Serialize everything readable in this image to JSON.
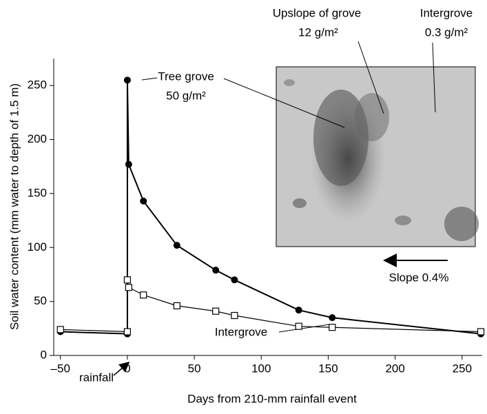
{
  "chart_data": {
    "type": "line",
    "x_label": "Days from 210-mm rainfall event",
    "y_label": "Soil water content (mm water to depth of 1.5 m)",
    "x": [
      -50,
      0,
      0,
      1,
      12,
      37,
      66,
      80,
      128,
      153,
      264
    ],
    "series": [
      {
        "name": "Tree grove",
        "color": "#000000",
        "marker": "filled-circle",
        "values": [
          22,
          20,
          255,
          177,
          143,
          102,
          79,
          70,
          42,
          35,
          20
        ]
      },
      {
        "name": "Intergrove",
        "color": "#000000",
        "marker": "open-square",
        "values": [
          24,
          22,
          70,
          63,
          56,
          46,
          41,
          37,
          27,
          26,
          22
        ]
      }
    ],
    "xlim": [
      -55,
      265
    ],
    "ylim": [
      0,
      275
    ],
    "xticks": [
      {
        "value": -50,
        "label": "–50"
      },
      0,
      50,
      100,
      150,
      200,
      250
    ],
    "yticks": [
      0,
      50,
      100,
      150,
      200,
      250
    ],
    "annotations": {
      "tree_grove_density": "50 g/m²",
      "upslope": "Upslope of grove",
      "upslope_density": "12 g/m²",
      "intergrove_photo": "Intergrove",
      "intergrove_density": "0.3 g/m²",
      "slope": "Slope 0.4%",
      "rainfall": "rainfall"
    }
  }
}
